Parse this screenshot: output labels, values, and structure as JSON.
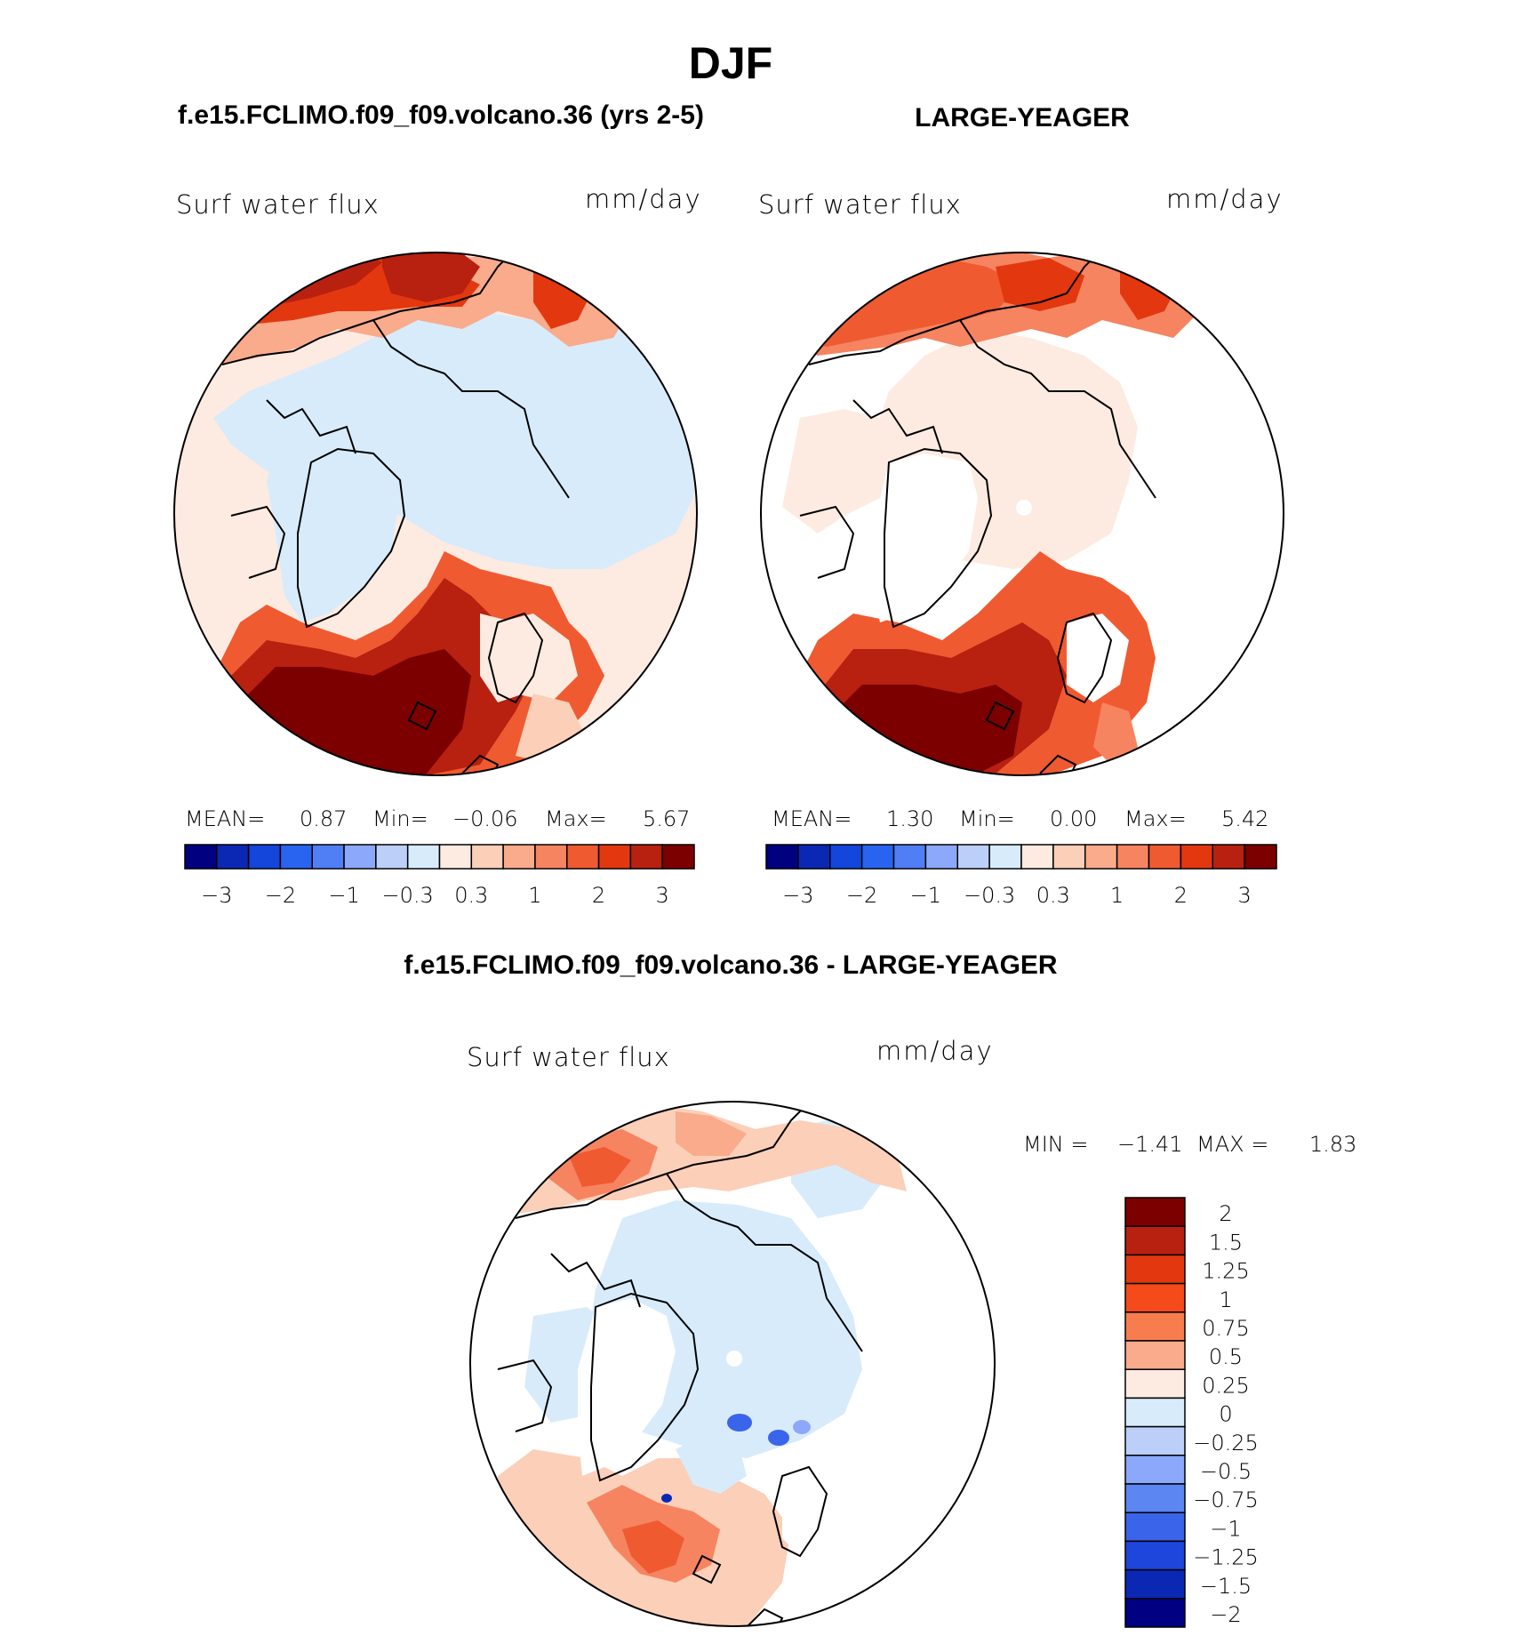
{
  "page_title": "DJF",
  "top_left": {
    "case_title": "f.e15.FCLIMO.f09_f09.volcano.36 (yrs 2-5)",
    "variable": "Surf water flux",
    "units": "mm/day",
    "stats": {
      "mean_label": "MEAN=",
      "mean": "0.87",
      "min_label": "Min=",
      "min": "−0.06",
      "max_label": "Max=",
      "max": "5.67"
    }
  },
  "top_right": {
    "case_title": "LARGE-YEAGER",
    "variable": "Surf water flux",
    "units": "mm/day",
    "stats": {
      "mean_label": "MEAN=",
      "mean": "1.30",
      "min_label": "Min=",
      "min": "0.00",
      "max_label": "Max=",
      "max": "5.42"
    }
  },
  "top_colorbar": {
    "colors": [
      "#000080",
      "#0a28b4",
      "#1446dc",
      "#2864f0",
      "#507ef5",
      "#8ca8fa",
      "#bccff9",
      "#d8ebfb",
      "#fdebe1",
      "#fbcfb8",
      "#f9ab8c",
      "#f68460",
      "#f05a31",
      "#e3380f",
      "#b82010",
      "#7c0000"
    ],
    "tick_labels": [
      "−3",
      "−2",
      "−1",
      "−0.3",
      "0.3",
      "1",
      "2",
      "3"
    ]
  },
  "diff": {
    "title": "f.e15.FCLIMO.f09_f09.volcano.36 - LARGE-YEAGER",
    "variable": "Surf water flux",
    "units": "mm/day",
    "stats": {
      "min_label": "MIN =",
      "min": "−1.41",
      "max_label": "MAX =",
      "max": "1.83"
    }
  },
  "diff_colorbar": {
    "colors": [
      "#7c0000",
      "#b82010",
      "#e3380f",
      "#f54a19",
      "#f77d4e",
      "#f9ab8c",
      "#fdebe1",
      "#d8ebfb",
      "#bccff9",
      "#8ca8fa",
      "#5c86f2",
      "#3a64ea",
      "#1e46dc",
      "#0a28b4",
      "#000080"
    ],
    "tick_labels": [
      "2",
      "1.5",
      "1.25",
      "1",
      "0.75",
      "0.5",
      "0.25",
      "0",
      "−0.25",
      "−0.5",
      "−0.75",
      "−1",
      "−1.25",
      "−1.5",
      "−2"
    ]
  }
}
